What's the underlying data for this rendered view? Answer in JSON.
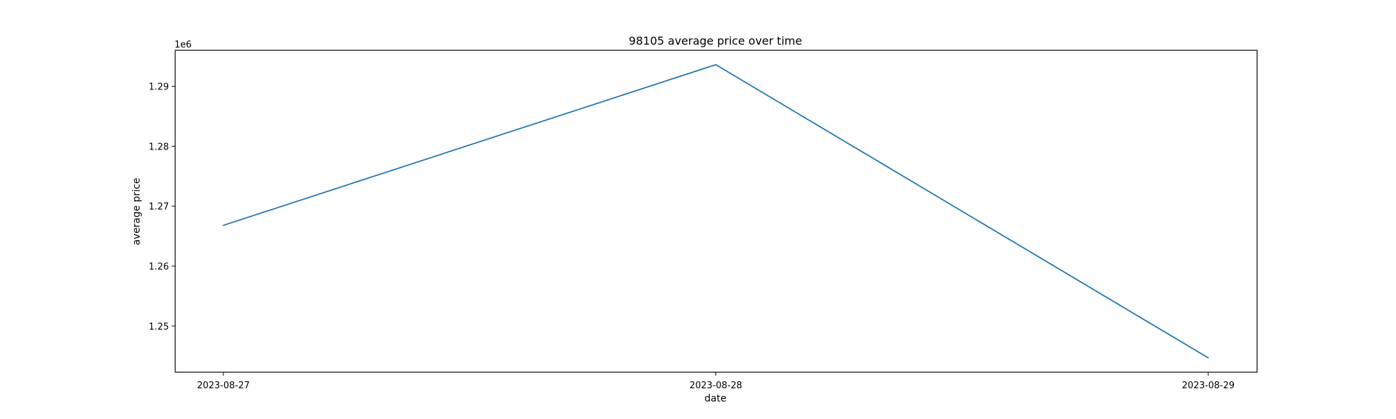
{
  "chart_data": {
    "type": "line",
    "title": "98105 average price over time",
    "xlabel": "date",
    "ylabel": "average price",
    "y_offset_label": "1e6",
    "x": [
      "2023-08-27",
      "2023-08-28",
      "2023-08-29"
    ],
    "x_tick_labels": [
      "2023-08-27",
      "2023-08-28",
      "2023-08-29"
    ],
    "series": [
      {
        "values": [
          1266800,
          1293600,
          1244700
        ],
        "color": "#1f77b4"
      }
    ],
    "y_ticks": [
      1250000,
      1260000,
      1270000,
      1280000,
      1290000
    ],
    "y_tick_labels": [
      "1.25",
      "1.26",
      "1.27",
      "1.28",
      "1.29"
    ],
    "ylim": [
      1242300,
      1296000
    ],
    "grid": false,
    "legend": "none"
  }
}
